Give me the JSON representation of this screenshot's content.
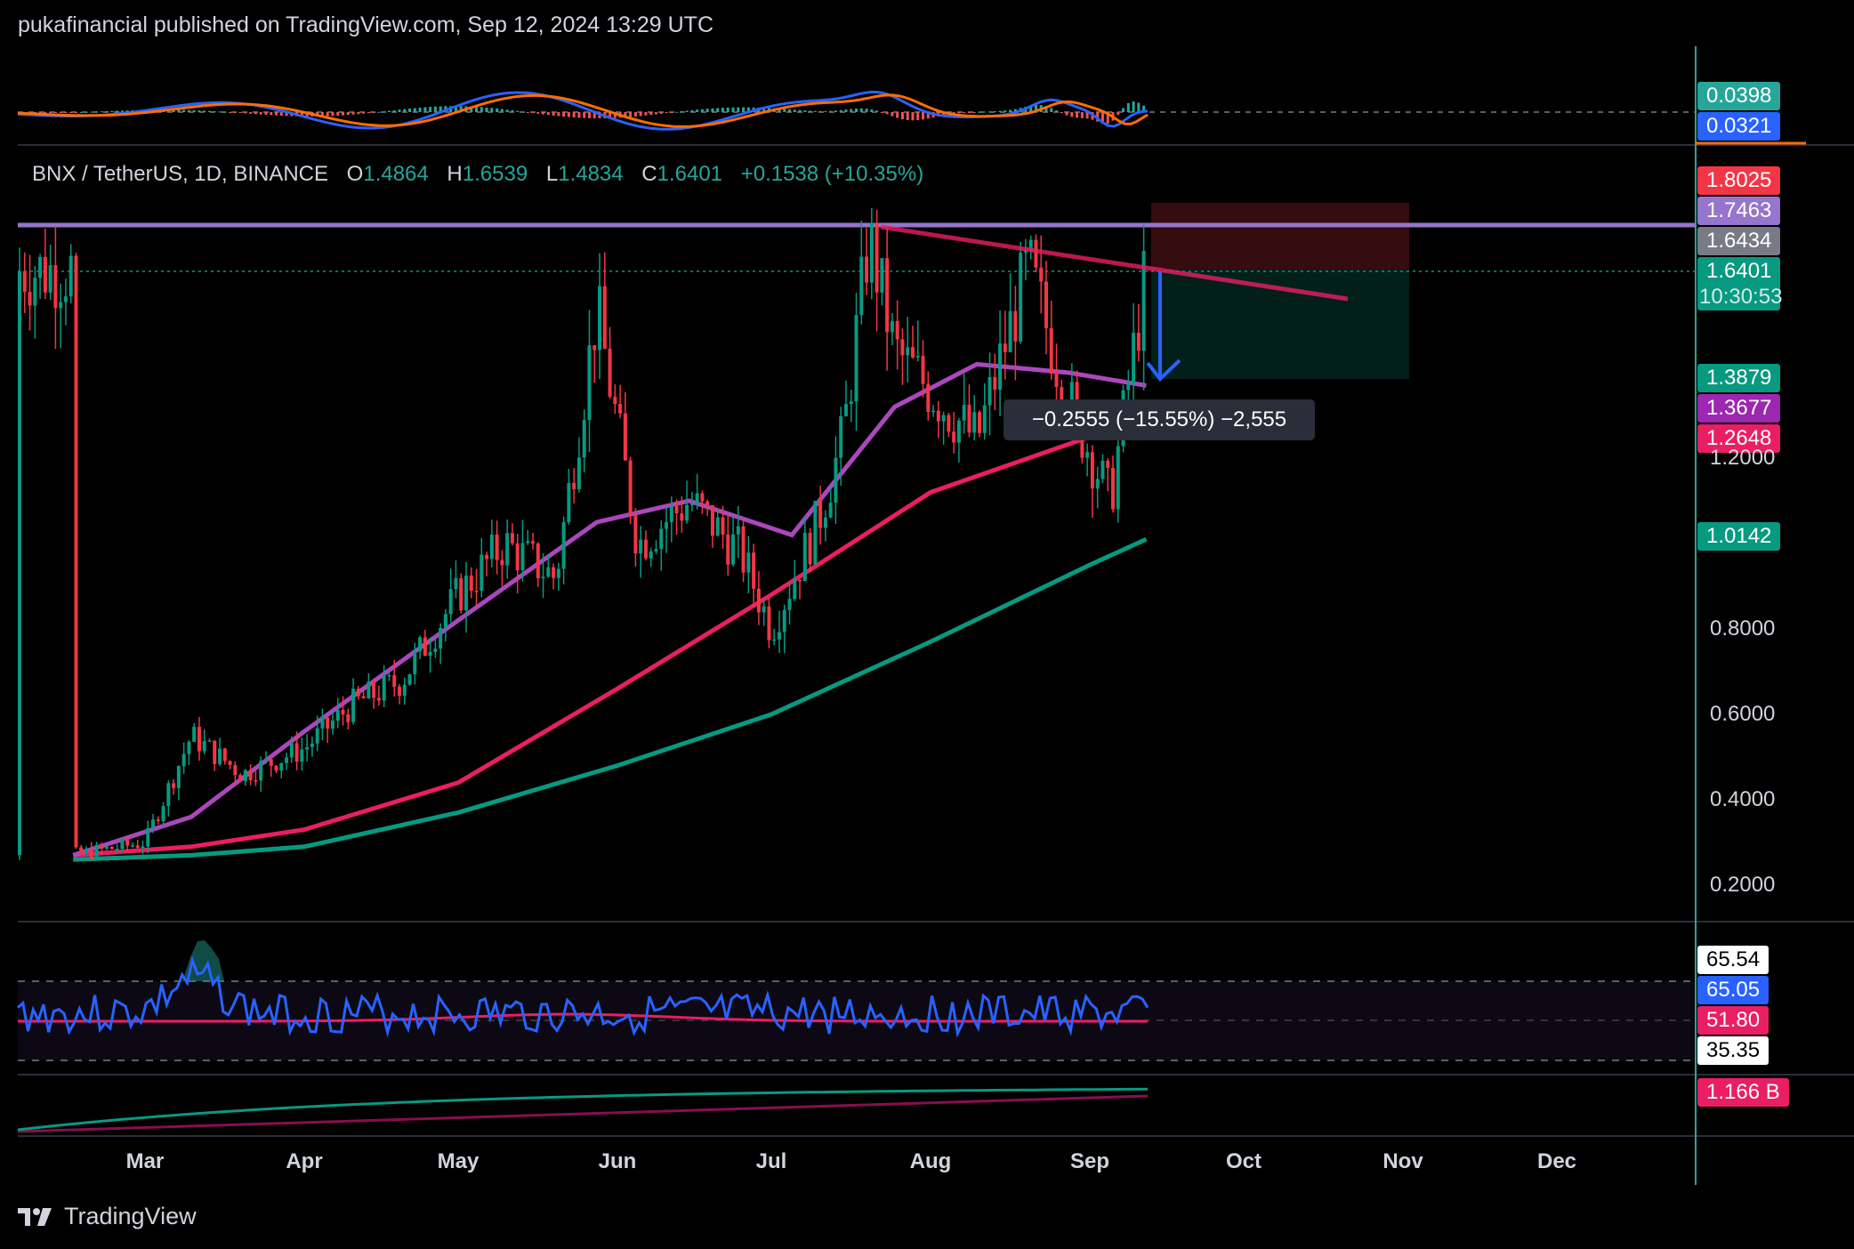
{
  "header": {
    "text": "pukafinancial published on TradingView.com, Sep 12, 2024 13:29 UTC"
  },
  "symbol": {
    "name": "BNX / TetherUS, 1D, BINANCE",
    "o_label": "O",
    "o": "1.4864",
    "h_label": "H",
    "h": "1.6539",
    "l_label": "L",
    "l": "1.4834",
    "c_label": "C",
    "c": "1.6401",
    "change": "+0.1538 (+10.35%)"
  },
  "price_tags": [
    {
      "value": "1.8025",
      "color": "#f23645"
    },
    {
      "value": "1.7463",
      "color": "#9575cd"
    },
    {
      "value": "1.6434",
      "color": "#787b86"
    },
    {
      "value": "1.6401",
      "color": "#089981"
    },
    {
      "value": "1.3879",
      "color": "#089981"
    },
    {
      "value": "1.3677",
      "color": "#9c27b0"
    },
    {
      "value": "1.2648",
      "color": "#e91e63"
    },
    {
      "value": "1.0142",
      "color": "#089981"
    }
  ],
  "countdown": "10:30:53",
  "price_axis": [
    "1.2000",
    "0.8000",
    "0.6000",
    "0.4000",
    "0.2000"
  ],
  "macd_tags": [
    {
      "value": "0.0398",
      "color": "#26a69a"
    },
    {
      "value": "0.0321",
      "color": "#2962ff"
    }
  ],
  "rsi_tags": [
    {
      "value": "65.54",
      "color": "#ffffff",
      "text_color": "#000000"
    },
    {
      "value": "65.05",
      "color": "#2962ff",
      "text_color": "#ffffff"
    },
    {
      "value": "51.80",
      "color": "#e91e63",
      "text_color": "#ffffff"
    },
    {
      "value": "35.35",
      "color": "#ffffff",
      "text_color": "#000000"
    }
  ],
  "volume_tag": {
    "value": "1.166 B",
    "color": "#e91e63"
  },
  "measure_label": "−0.2555 (−15.55%) −2,555",
  "months": [
    "Mar",
    "Apr",
    "May",
    "Jun",
    "Jul",
    "Aug",
    "Sep",
    "Oct",
    "Nov",
    "Dec"
  ],
  "footer": {
    "brand": "TradingView"
  },
  "chart_data": {
    "type": "line",
    "title": "BNX / TetherUS, 1D, BINANCE",
    "x_axis": [
      "Mar",
      "Apr",
      "May",
      "Jun",
      "Jul",
      "Aug",
      "Sep",
      "Oct",
      "Nov",
      "Dec"
    ],
    "ylim": [
      0.1,
      1.95
    ],
    "series": [
      {
        "name": "",
        "role": "price_close",
        "x": [
          "Feb 15",
          "Mar 1",
          "Mar 10",
          "Mar 20",
          "Apr 1",
          "Apr 10",
          "Apr 20",
          "May 1",
          "May 10",
          "May 20",
          "May 28",
          "Jun 5",
          "Jun 15",
          "Jun 25",
          "Jul 1",
          "Jul 10",
          "Jul 15",
          "Jul 20",
          "Jul 25",
          "Aug 1",
          "Aug 10",
          "Aug 20",
          "Aug 28",
          "Sep 5",
          "Sep 12"
        ],
        "values": [
          0.27,
          0.3,
          0.55,
          0.46,
          0.52,
          0.62,
          0.68,
          0.88,
          1.0,
          0.92,
          1.55,
          1.0,
          1.1,
          0.98,
          0.8,
          1.05,
          1.25,
          1.72,
          1.45,
          1.36,
          1.24,
          1.65,
          1.33,
          1.1,
          1.64
        ]
      },
      {
        "name": "",
        "role": "ema_short",
        "color": "#ab47bc",
        "x": [
          "Feb 15",
          "Mar 10",
          "Apr 1",
          "May 1",
          "May 28",
          "Jun 15",
          "Jul 5",
          "Jul 25",
          "Aug 10",
          "Aug 28",
          "Sep 12"
        ],
        "values": [
          0.27,
          0.36,
          0.56,
          0.82,
          1.05,
          1.1,
          1.02,
          1.32,
          1.42,
          1.4,
          1.37
        ]
      },
      {
        "name": "",
        "role": "ema_mid",
        "color": "#e91e63",
        "x": [
          "Feb 15",
          "Mar 10",
          "Apr 1",
          "May 1",
          "Jun 1",
          "Jul 1",
          "Aug 1",
          "Sep 1",
          "Sep 12"
        ],
        "values": [
          0.27,
          0.29,
          0.33,
          0.44,
          0.66,
          0.88,
          1.12,
          1.25,
          1.26
        ]
      },
      {
        "name": "",
        "role": "ema_long",
        "color": "#089981",
        "x": [
          "Feb 15",
          "Mar 10",
          "Apr 1",
          "May 1",
          "Jun 1",
          "Jul 1",
          "Aug 1",
          "Sep 1",
          "Sep 12"
        ],
        "values": [
          0.26,
          0.27,
          0.29,
          0.37,
          0.48,
          0.6,
          0.77,
          0.95,
          1.01
        ]
      }
    ],
    "horizontal_lines": [
      1.7463
    ],
    "trendline": {
      "from": [
        "Jul 21",
        1.7463
      ],
      "to": [
        "Oct 22",
        1.53
      ]
    },
    "short_position": {
      "entry": 1.6434,
      "stop": 1.8025,
      "target": 1.3879
    },
    "measurement": "−0.2555 (−15.55%) −2,555",
    "rsi": {
      "upper": 65.54,
      "lower": 35.35,
      "rsi_last": 65.05,
      "ma_last": 51.8
    },
    "macd": {
      "macd_last": 0.0398,
      "signal_last": 0.0321
    },
    "volume_last": "1.166 B",
    "grid": false
  }
}
